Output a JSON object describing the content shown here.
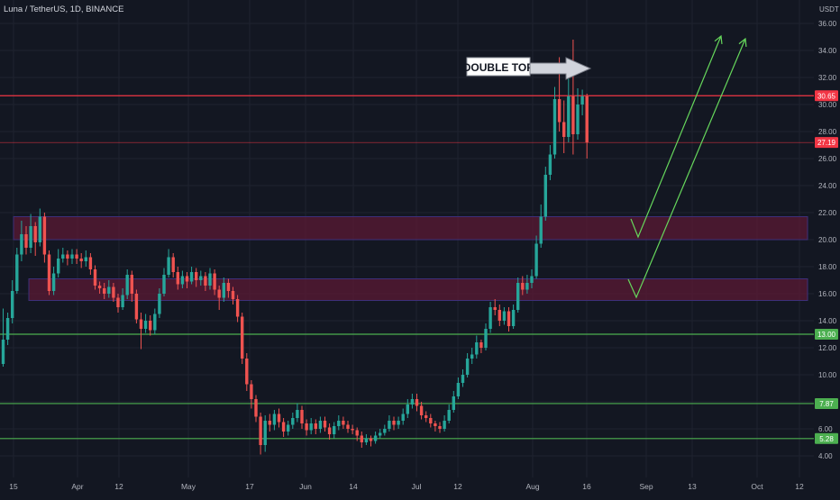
{
  "header": {
    "symbol_line": "Luna / TetherUS, 1D, BINANCE"
  },
  "colors": {
    "background": "#131722",
    "grid": "#1f2330",
    "axis_text": "#b2b5be",
    "up": "#26a69a",
    "down": "#ef5350",
    "resistance": "#f23645",
    "support": "#4caf50",
    "zone_fill": "#5b1a34",
    "zone_border": "#3d2f7a",
    "projection": "#66d75c",
    "callout_bg": "#ffffff",
    "callout_text": "#131722"
  },
  "chart_data": {
    "type": "candlestick",
    "price_axis": {
      "unit_label": "USDT",
      "ticks": [
        "36.00",
        "34.00",
        "32.00",
        "30.00",
        "28.00",
        "26.00",
        "24.00",
        "22.00",
        "20.00",
        "18.00",
        "16.00",
        "14.00",
        "12.00",
        "10.00",
        "8.00",
        "6.00",
        "4.00"
      ],
      "range": [
        3,
        37
      ]
    },
    "time_axis": {
      "labels": [
        "15",
        "Apr",
        "12",
        "May",
        "17",
        "Jun",
        "14",
        "Jul",
        "12",
        "Aug",
        "16",
        "Sep",
        "13",
        "Oct",
        "12"
      ]
    },
    "levels": [
      {
        "name": "resistance",
        "value": 30.65,
        "label": "30.65"
      },
      {
        "name": "last-price",
        "value": 27.19,
        "label": "27.19"
      },
      {
        "name": "support-13",
        "value": 13.0,
        "label": "13.00"
      },
      {
        "name": "support-7",
        "value": 7.87,
        "label": "7.87"
      },
      {
        "name": "support-5",
        "value": 5.28,
        "label": "5.28"
      }
    ],
    "zones": [
      {
        "name": "zone-upper",
        "low": 20.0,
        "high": 21.7
      },
      {
        "name": "zone-lower",
        "low": 15.5,
        "high": 17.1
      }
    ],
    "annotation": {
      "text": "DOUBLE TOP"
    },
    "candles": [
      [
        10.8,
        12.6,
        14.9,
        10.6
      ],
      [
        12.6,
        14.2,
        14.6,
        12.2
      ],
      [
        14.2,
        16.2,
        17.0,
        13.8
      ],
      [
        16.2,
        18.9,
        19.4,
        16.0
      ],
      [
        18.9,
        20.4,
        21.4,
        18.4
      ],
      [
        20.4,
        19.4,
        21.0,
        18.9
      ],
      [
        19.4,
        21.0,
        21.9,
        19.0
      ],
      [
        21.0,
        19.8,
        21.3,
        18.8
      ],
      [
        19.8,
        21.7,
        22.3,
        19.5
      ],
      [
        21.7,
        18.9,
        22.0,
        18.3
      ],
      [
        18.9,
        16.2,
        19.2,
        15.9
      ],
      [
        16.2,
        17.5,
        18.0,
        15.9
      ],
      [
        17.5,
        18.6,
        19.3,
        17.2
      ],
      [
        18.6,
        18.9,
        19.4,
        18.3
      ],
      [
        18.9,
        18.6,
        19.2,
        18.1
      ],
      [
        18.6,
        18.9,
        19.3,
        18.2
      ],
      [
        18.9,
        18.6,
        19.3,
        18.2
      ],
      [
        18.6,
        18.4,
        19.0,
        17.9
      ],
      [
        18.4,
        18.7,
        19.2,
        18.0
      ],
      [
        18.7,
        17.8,
        19.0,
        17.4
      ],
      [
        17.8,
        16.6,
        18.1,
        16.3
      ],
      [
        16.6,
        16.4,
        16.9,
        16.0
      ],
      [
        16.4,
        16.0,
        16.8,
        15.6
      ],
      [
        16.0,
        16.5,
        17.0,
        15.7
      ],
      [
        16.5,
        15.7,
        16.8,
        15.4
      ],
      [
        15.7,
        15.0,
        16.0,
        14.6
      ],
      [
        15.0,
        15.9,
        16.4,
        14.8
      ],
      [
        15.9,
        17.4,
        17.8,
        15.6
      ],
      [
        17.4,
        16.0,
        17.7,
        15.4
      ],
      [
        16.0,
        14.1,
        16.3,
        13.8
      ],
      [
        14.1,
        13.4,
        14.6,
        11.9
      ],
      [
        13.4,
        14.0,
        14.5,
        13.1
      ],
      [
        14.0,
        13.3,
        14.4,
        12.9
      ],
      [
        13.3,
        14.5,
        14.9,
        13.0
      ],
      [
        14.5,
        16.0,
        16.4,
        14.2
      ],
      [
        16.0,
        17.4,
        17.9,
        15.8
      ],
      [
        17.4,
        18.7,
        19.3,
        17.2
      ],
      [
        18.7,
        17.6,
        19.0,
        17.2
      ],
      [
        17.6,
        16.7,
        18.0,
        16.3
      ],
      [
        16.7,
        17.3,
        17.7,
        16.4
      ],
      [
        17.3,
        16.9,
        17.6,
        16.4
      ],
      [
        16.9,
        17.6,
        18.0,
        16.7
      ],
      [
        17.6,
        17.0,
        17.9,
        16.5
      ],
      [
        17.0,
        17.3,
        17.7,
        16.6
      ],
      [
        17.3,
        16.6,
        17.6,
        16.2
      ],
      [
        16.6,
        17.5,
        17.9,
        16.3
      ],
      [
        17.5,
        16.3,
        17.8,
        15.9
      ],
      [
        16.3,
        15.7,
        16.6,
        14.8
      ],
      [
        15.7,
        16.8,
        17.2,
        15.4
      ],
      [
        16.8,
        16.2,
        17.1,
        15.7
      ],
      [
        16.2,
        15.6,
        16.5,
        15.2
      ],
      [
        15.6,
        14.3,
        15.9,
        13.9
      ],
      [
        14.3,
        11.2,
        14.6,
        10.8
      ],
      [
        11.2,
        9.3,
        11.6,
        8.8
      ],
      [
        9.3,
        8.2,
        9.6,
        7.5
      ],
      [
        8.2,
        6.9,
        8.5,
        6.5
      ],
      [
        6.9,
        4.8,
        7.2,
        4.1
      ],
      [
        4.8,
        6.6,
        7.0,
        4.3
      ],
      [
        6.6,
        6.3,
        7.1,
        5.8
      ],
      [
        6.3,
        7.1,
        7.4,
        5.9
      ],
      [
        7.1,
        6.5,
        7.5,
        6.1
      ],
      [
        6.5,
        5.8,
        6.8,
        5.4
      ],
      [
        5.8,
        6.3,
        6.6,
        5.5
      ],
      [
        6.3,
        6.8,
        7.2,
        6.0
      ],
      [
        6.8,
        7.4,
        7.9,
        6.5
      ],
      [
        7.4,
        6.4,
        7.7,
        6.0
      ],
      [
        6.4,
        5.9,
        6.7,
        5.5
      ],
      [
        5.9,
        6.4,
        6.8,
        5.6
      ],
      [
        6.4,
        6.0,
        6.7,
        5.6
      ],
      [
        6.0,
        6.6,
        6.9,
        5.7
      ],
      [
        6.6,
        6.1,
        6.9,
        5.8
      ],
      [
        6.1,
        5.6,
        6.4,
        5.2
      ],
      [
        5.6,
        6.2,
        6.5,
        5.3
      ],
      [
        6.2,
        6.6,
        7.0,
        5.9
      ],
      [
        6.6,
        6.3,
        6.9,
        6.0
      ],
      [
        6.3,
        6.0,
        6.6,
        5.7
      ],
      [
        6.0,
        5.9,
        6.3,
        5.6
      ],
      [
        5.9,
        5.5,
        6.1,
        5.1
      ],
      [
        5.5,
        5.0,
        5.8,
        4.6
      ],
      [
        5.0,
        5.3,
        5.6,
        4.8
      ],
      [
        5.3,
        5.1,
        5.5,
        4.7
      ],
      [
        5.1,
        5.5,
        5.8,
        4.9
      ],
      [
        5.5,
        5.7,
        6.0,
        5.3
      ],
      [
        5.7,
        6.0,
        6.3,
        5.5
      ],
      [
        6.0,
        6.6,
        7.0,
        5.8
      ],
      [
        6.6,
        6.3,
        6.9,
        5.9
      ],
      [
        6.3,
        6.6,
        6.9,
        6.0
      ],
      [
        6.6,
        7.1,
        7.5,
        6.3
      ],
      [
        7.1,
        7.8,
        8.2,
        6.8
      ],
      [
        7.8,
        8.2,
        8.6,
        7.5
      ],
      [
        8.2,
        7.7,
        8.6,
        7.3
      ],
      [
        7.7,
        7.0,
        8.0,
        6.7
      ],
      [
        7.0,
        6.8,
        7.3,
        6.5
      ],
      [
        6.8,
        6.4,
        7.1,
        6.1
      ],
      [
        6.4,
        6.2,
        6.6,
        5.8
      ],
      [
        6.2,
        6.0,
        6.5,
        5.7
      ],
      [
        6.0,
        6.6,
        7.0,
        5.8
      ],
      [
        6.6,
        7.4,
        7.8,
        6.4
      ],
      [
        7.4,
        8.4,
        8.8,
        7.2
      ],
      [
        8.4,
        9.4,
        9.8,
        8.2
      ],
      [
        9.4,
        10.0,
        10.4,
        9.1
      ],
      [
        10.0,
        11.2,
        11.6,
        9.8
      ],
      [
        11.2,
        11.5,
        12.0,
        10.8
      ],
      [
        11.5,
        12.4,
        12.9,
        11.2
      ],
      [
        12.4,
        12.0,
        12.6,
        11.6
      ],
      [
        12.0,
        13.4,
        13.8,
        11.8
      ],
      [
        13.4,
        15.0,
        15.4,
        13.1
      ],
      [
        15.0,
        14.8,
        15.6,
        14.4
      ],
      [
        14.8,
        14.0,
        15.2,
        13.6
      ],
      [
        14.0,
        14.7,
        15.0,
        13.7
      ],
      [
        14.7,
        13.6,
        15.0,
        13.2
      ],
      [
        13.6,
        14.8,
        15.2,
        13.4
      ],
      [
        14.8,
        16.8,
        17.2,
        14.6
      ],
      [
        16.8,
        16.3,
        17.3,
        15.9
      ],
      [
        16.3,
        16.8,
        17.4,
        16.0
      ],
      [
        16.8,
        17.3,
        17.8,
        16.4
      ],
      [
        17.3,
        19.7,
        20.3,
        17.1
      ],
      [
        19.7,
        21.7,
        22.6,
        19.4
      ],
      [
        21.7,
        24.8,
        25.4,
        21.4
      ],
      [
        24.8,
        26.3,
        27.0,
        24.4
      ],
      [
        26.3,
        30.4,
        31.3,
        26.0
      ],
      [
        30.4,
        28.7,
        33.5,
        28.0
      ],
      [
        28.7,
        27.6,
        30.3,
        26.4
      ],
      [
        27.6,
        30.6,
        31.9,
        27.2
      ],
      [
        30.6,
        27.8,
        34.8,
        26.3
      ],
      [
        27.8,
        30.0,
        31.2,
        27.4
      ],
      [
        30.0,
        30.6,
        31.1,
        29.2
      ],
      [
        30.6,
        27.2,
        30.8,
        26.0
      ]
    ]
  }
}
